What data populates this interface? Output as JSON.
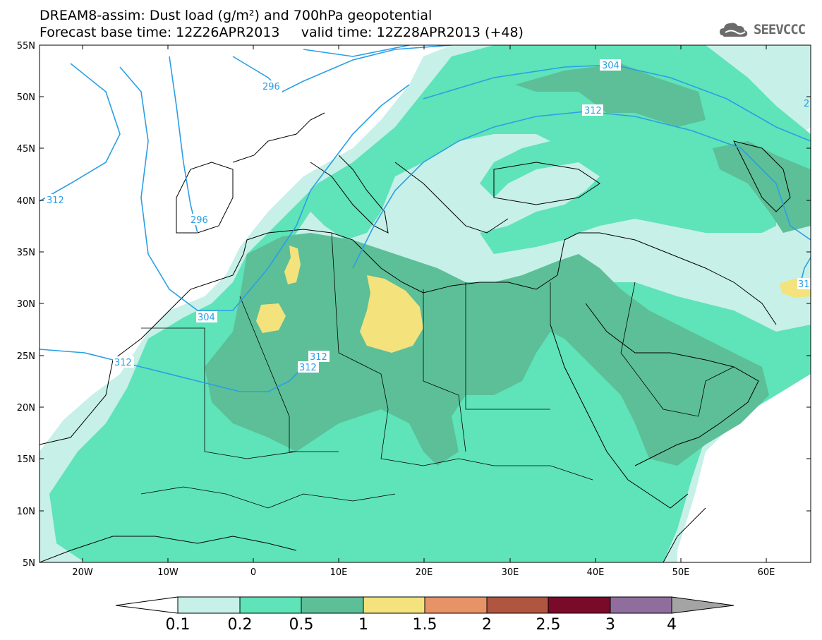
{
  "title": {
    "line1": "DREAM8-assim: Dust load (g/m²) and 700hPa geopotential",
    "line2": "Forecast base time: 12Z26APR2013     valid time: 12Z28APR2013 (+48)"
  },
  "logo": {
    "text": "SEEVCCC",
    "icon": "cloud-icon"
  },
  "axes": {
    "lat_labels": [
      "55N",
      "50N",
      "45N",
      "40N",
      "35N",
      "30N",
      "25N",
      "20N",
      "15N",
      "10N",
      "5N"
    ],
    "lon_labels": [
      "20W",
      "10W",
      "0",
      "10E",
      "20E",
      "30E",
      "40E",
      "50E",
      "60E"
    ]
  },
  "contours": {
    "label_304_top": "304",
    "label_312_top": "312",
    "label_296_top": "296",
    "label_312_left": "312",
    "label_296_mid": "296",
    "label_304_mid": "304",
    "label_312_sw": "312",
    "label_312_a": "312",
    "label_312_b": "312",
    "label_31_right": "31",
    "label_2_right": "2"
  },
  "colorbar": {
    "ticks": [
      "0.1",
      "0.2",
      "0.5",
      "1",
      "1.5",
      "2",
      "2.5",
      "3",
      "4"
    ],
    "colors": [
      "#ffffff",
      "#c6f0e8",
      "#5fe3b8",
      "#5cbf98",
      "#f4e27c",
      "#e89268",
      "#b05540",
      "#7a0a2a",
      "#8f6e9e",
      "#a4a4a4"
    ]
  },
  "colors": {
    "low": "#c6f0e8",
    "mid": "#5fe3b8",
    "high": "#5cbf98",
    "peak": "#f4e27c",
    "contour": "#2a9fe6"
  }
}
